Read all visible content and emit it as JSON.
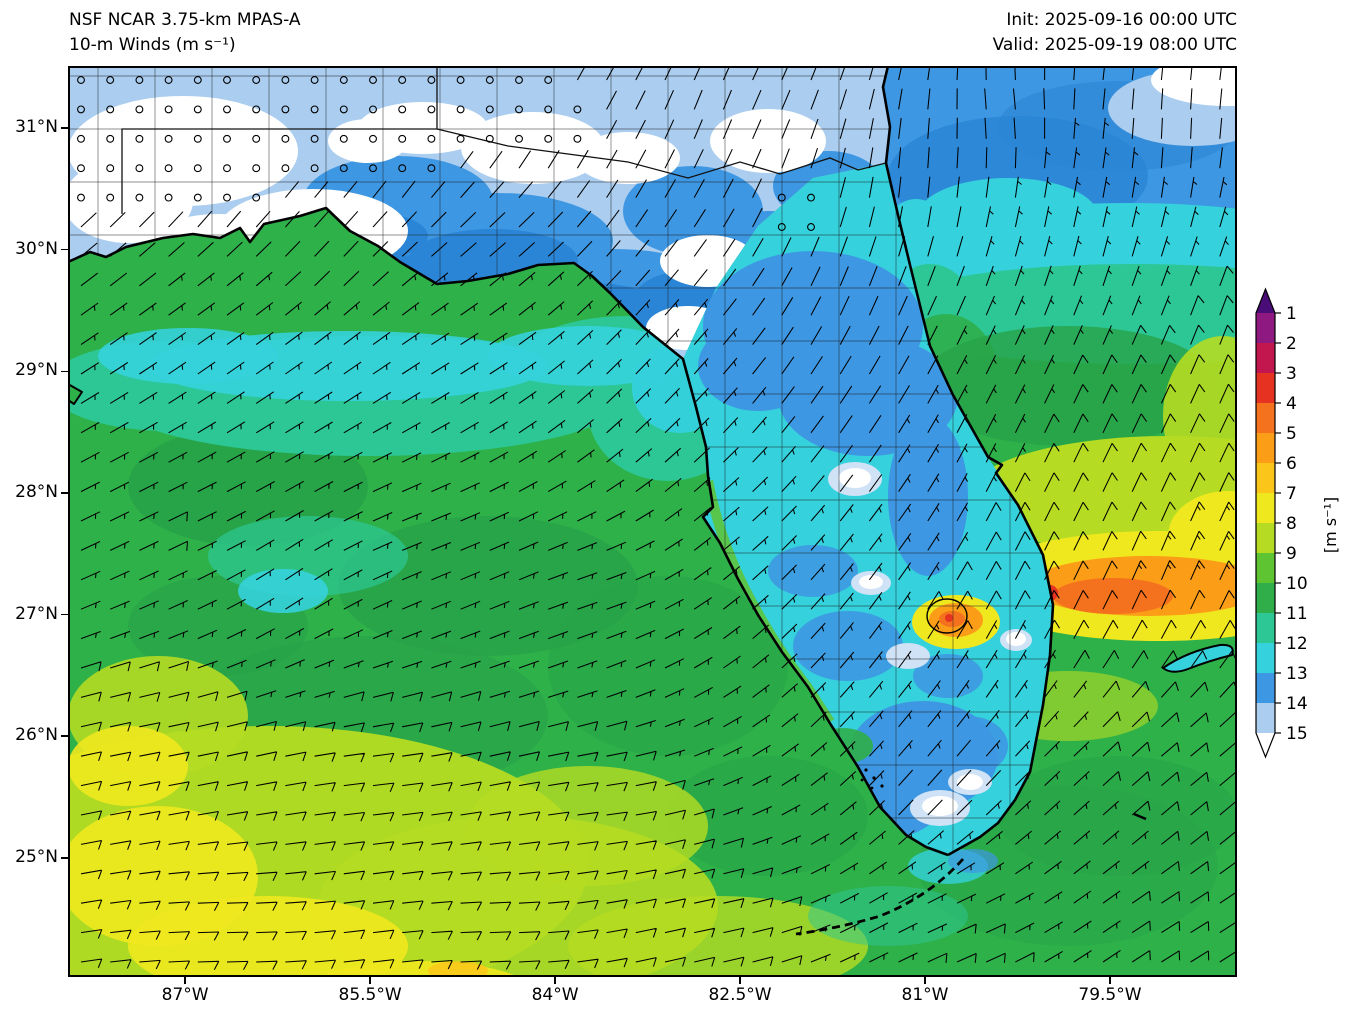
{
  "header": {
    "model_line": "NSF NCAR 3.75-km MPAS-A",
    "field_line": "10-m Winds (m s⁻¹)",
    "init_label": "Init: 2025-09-16 00:00 UTC",
    "valid_label": "Valid: 2025-09-19 08:00 UTC"
  },
  "chart_data": {
    "type": "heatmap",
    "field": "10-m wind speed with wind barbs",
    "units": "m s⁻¹",
    "model": "NSF NCAR 3.75-km MPAS-A",
    "init_time": "2025-09-16 00:00 UTC",
    "valid_time": "2025-09-19 08:00 UTC",
    "extent": {
      "lon_min": -87.95,
      "lon_max": -78.47,
      "lat_min": 24.02,
      "lat_max": 31.51
    },
    "x_ticks": [
      {
        "label": "87°W",
        "lon": -87.0
      },
      {
        "label": "85.5°W",
        "lon": -85.5
      },
      {
        "label": "84°W",
        "lon": -84.0
      },
      {
        "label": "82.5°W",
        "lon": -82.5
      },
      {
        "label": "81°W",
        "lon": -81.0
      },
      {
        "label": "79.5°W",
        "lon": -79.5
      }
    ],
    "y_ticks": [
      {
        "label": "31°N",
        "lat": 31.0
      },
      {
        "label": "30°N",
        "lat": 30.0
      },
      {
        "label": "29°N",
        "lat": 29.0
      },
      {
        "label": "28°N",
        "lat": 28.0
      },
      {
        "label": "27°N",
        "lat": 27.0
      },
      {
        "label": "26°N",
        "lat": 26.0
      },
      {
        "label": "25°N",
        "lat": 25.0
      }
    ],
    "colorbar": {
      "label": "[m s⁻¹]",
      "tick_labels": [
        "1",
        "2",
        "3",
        "4",
        "5",
        "6",
        "7",
        "8",
        "9",
        "10",
        "11",
        "12",
        "13",
        "14",
        "15"
      ],
      "segment_colors_low_to_high": [
        "#aacdf0",
        "#3e97e2",
        "#35d1dc",
        "#2cc795",
        "#2fae4a",
        "#5ec432",
        "#b5dc22",
        "#f0e81e",
        "#fcc51a",
        "#fb9d17",
        "#f4711d",
        "#e63321",
        "#c2174e",
        "#8e1980"
      ],
      "under_arrow_color": "#ffffff",
      "over_arrow_color": "#4a0d78"
    },
    "wind_barbs": {
      "convention": "full barb = 5 m s⁻¹, half barb = 2.5 m s⁻¹, open circle = calm (< 1 m s⁻¹); direction is the direction wind blows from",
      "grid_lon_lat_dirfrom_speed": [
        [
          -87.5,
          31.0,
          0,
          0.4
        ],
        [
          -86.7,
          30.5,
          0,
          0.4
        ],
        [
          -85.9,
          31.0,
          20,
          0.5
        ],
        [
          -85.3,
          30.8,
          0,
          0.5
        ],
        [
          -84.5,
          31.1,
          30,
          0.9
        ],
        [
          -84.1,
          30.9,
          0,
          0.6
        ],
        [
          -83.4,
          30.5,
          25,
          1.4
        ],
        [
          -82.9,
          31.0,
          15,
          1.3
        ],
        [
          -82.0,
          30.3,
          0,
          0.5
        ],
        [
          -81.6,
          29.6,
          10,
          0.6
        ],
        [
          -81.7,
          29.2,
          10,
          0.6
        ],
        [
          -81.1,
          30.5,
          355,
          1.8
        ],
        [
          -85.9,
          30.0,
          40,
          2.4
        ],
        [
          -84.3,
          29.9,
          50,
          2.8
        ],
        [
          -86.7,
          29.2,
          55,
          4.2
        ],
        [
          -84.7,
          29.1,
          60,
          4.3
        ],
        [
          -83.4,
          28.8,
          45,
          3.4
        ],
        [
          -83.1,
          29.1,
          40,
          3.2
        ],
        [
          -87.0,
          27.6,
          65,
          5.5
        ],
        [
          -85.1,
          27.7,
          70,
          5.5
        ],
        [
          -86.2,
          27.2,
          50,
          3.2
        ],
        [
          -83.7,
          27.2,
          75,
          5.5
        ],
        [
          -82.6,
          27.7,
          50,
          4.0
        ],
        [
          -87.3,
          25.8,
          80,
          6.5
        ],
        [
          -85.5,
          25.6,
          85,
          7.0
        ],
        [
          -83.7,
          25.4,
          85,
          6.5
        ],
        [
          -86.7,
          24.4,
          90,
          7.5
        ],
        [
          -84.5,
          24.4,
          90,
          7.5
        ],
        [
          -82.7,
          24.5,
          80,
          6.5
        ],
        [
          -80.7,
          24.4,
          70,
          6.0
        ],
        [
          -78.9,
          24.4,
          60,
          5.5
        ],
        [
          -81.8,
          28.8,
          35,
          2.8
        ],
        [
          -81.4,
          27.6,
          40,
          3.2
        ],
        [
          -81.1,
          26.3,
          40,
          2.8
        ],
        [
          -81.1,
          25.4,
          35,
          1.8
        ],
        [
          -81.6,
          28.1,
          30,
          0.7
        ],
        [
          -80.7,
          25.6,
          40,
          0.7
        ],
        [
          -80.3,
          26.8,
          0,
          0.6
        ],
        [
          -80.7,
          26.9,
          30,
          8.5
        ],
        [
          -80.0,
          27.2,
          25,
          10.5
        ],
        [
          -80.4,
          28.2,
          25,
          5.0
        ],
        [
          -79.1,
          27.3,
          20,
          9.0
        ],
        [
          -78.5,
          27.7,
          25,
          8.5
        ],
        [
          -79.4,
          28.6,
          25,
          7.0
        ],
        [
          -78.5,
          29.5,
          20,
          6.0
        ],
        [
          -79.8,
          30.3,
          10,
          4.0
        ],
        [
          -79.0,
          30.8,
          355,
          2.5
        ],
        [
          -78.7,
          31.2,
          0,
          0.5
        ],
        [
          -80.3,
          31.0,
          340,
          2.0
        ],
        [
          -79.8,
          25.8,
          50,
          5.5
        ],
        [
          -78.9,
          25.9,
          55,
          6.0
        ]
      ]
    },
    "overlays": [
      "coastlines",
      "state and county boundaries",
      "wind barbs",
      "open-circle calm symbols"
    ],
    "notable_features": [
      "Calm to very light winds (< 2 m s⁻¹, white / pale blue with open-circle calm symbols) over inland Alabama, Georgia and the Florida Panhandle",
      "Light NE winds (2–4 m s⁻¹, blue / cyan) over the Florida peninsula interior",
      "Moderate E–ENE flow (4–8 m s⁻¹, green to yellow-green) over the Gulf of Mexico, strongest (7–8 m s⁻¹, yellow) toward the southwest corner",
      "NNE wind maximum of 8–12 m s⁻¹ (yellow / orange with a small red core) in the Atlantic off the southeast Florida coast near 27°N",
      "Local 8–10 m s⁻¹ maximum (orange / red) over and southeast of Lake Okeechobee"
    ]
  }
}
